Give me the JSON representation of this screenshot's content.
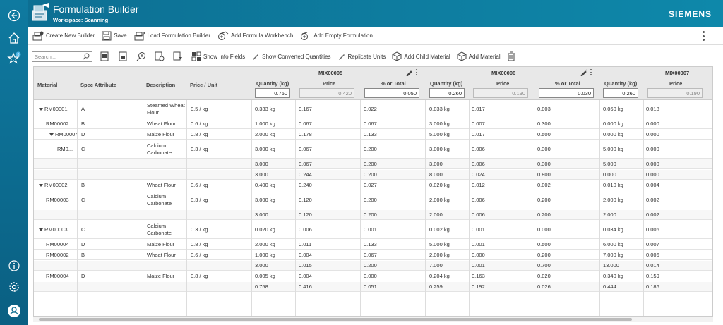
{
  "app": {
    "title": "Formulation Builder",
    "workspace": "Workspace: Scanning",
    "brand": "SIEMENS"
  },
  "nav": {
    "icons": [
      "back-icon",
      "home-icon",
      "favorites-icon",
      "info-icon",
      "settings-icon",
      "user-icon"
    ],
    "badge": "0"
  },
  "toolbar1": {
    "create": "Create New Builder",
    "save": "Save",
    "load": "Load Formulation Builder",
    "add_workbench": "Add Formula Workbench",
    "add_empty": "Add Empty Formulation"
  },
  "toolbar2": {
    "search_placeholder": "Search...",
    "show_info": "Show Info Fields",
    "show_converted": "Show Converted Quantities",
    "replicate": "Replicate Units",
    "add_child": "Add Child Material",
    "add_material": "Add Material"
  },
  "columns": {
    "material": "Material",
    "spec": "Spec Attribute",
    "description": "Description",
    "price": "Price / Unit",
    "quantity": "Quantity (kg)",
    "mix_price": "Price",
    "pct": "% or Total"
  },
  "mixes": [
    {
      "name": "MIX00005",
      "quantity": "0.760",
      "price": "0.420",
      "pct": "0.050"
    },
    {
      "name": "MIX00006",
      "quantity": "0.260",
      "price": "0.190",
      "pct": "0.030"
    },
    {
      "name": "MIX00007",
      "quantity": "0.260",
      "price": "0.190"
    }
  ],
  "rows": [
    {
      "material": "RM00001",
      "arrow": true,
      "indent": 0,
      "spec": "A",
      "desc": "Steamed Wheat Flour",
      "price": "0.5 / kg",
      "v": [
        "0.333 kg",
        "0.167",
        "0.022",
        "0.033 kg",
        "0.017",
        "0.003",
        "0.060 kg",
        "0.018"
      ],
      "h": 26
    },
    {
      "material": "RM00002",
      "indent": 2,
      "spec": "B",
      "desc": "Wheat Flour",
      "price": "0.6 / kg",
      "v": [
        "1.000 kg",
        "0.067",
        "0.067",
        "3.000 kg",
        "0.007",
        "0.300",
        "0.000 kg",
        "0.000"
      ],
      "h": 14
    },
    {
      "material": "RM00004",
      "arrow": true,
      "indent": 1,
      "spec": "D",
      "desc": "Maize Flour",
      "price": "0.8 / kg",
      "v": [
        "2.000 kg",
        "0.178",
        "0.133",
        "5.000 kg",
        "0.017",
        "0.500",
        "0.000 kg",
        "0.000"
      ],
      "h": 14
    },
    {
      "material": "RM0...",
      "indent": 3,
      "spec": "C",
      "desc": "Calcium Carbonate",
      "price": "0.3 / kg",
      "v": [
        "3.000 kg",
        "0.067",
        "0.200",
        "3.000 kg",
        "0.006",
        "0.300",
        "5.000 kg",
        "0.000"
      ],
      "h": 26
    },
    {
      "material": "",
      "indent": 0,
      "spec": "",
      "desc": "",
      "price": "",
      "sub": true,
      "v": [
        "3.000",
        "0.067",
        "0.200",
        "3.000",
        "0.006",
        "0.300",
        "5.000",
        "0.000"
      ],
      "h": 14
    },
    {
      "material": "",
      "indent": 0,
      "spec": "",
      "desc": "",
      "price": "",
      "sub": true,
      "v": [
        "3.000",
        "0.244",
        "0.200",
        "8.000",
        "0.024",
        "0.800",
        "0.000",
        "0.000"
      ],
      "h": 14
    },
    {
      "material": "RM00002",
      "arrow": true,
      "indent": 0,
      "spec": "B",
      "desc": "Wheat Flour",
      "price": "0.6 / kg",
      "v": [
        "0.400 kg",
        "0.240",
        "0.027",
        "0.020 kg",
        "0.012",
        "0.002",
        "0.010 kg",
        "0.004"
      ],
      "h": 14
    },
    {
      "material": "RM00003",
      "indent": 2,
      "spec": "C",
      "desc": "Calcium Carbonate",
      "price": "0.3 / kg",
      "v": [
        "3.000 kg",
        "0.120",
        "0.200",
        "2.000 kg",
        "0.006",
        "0.200",
        "2.000 kg",
        "0.002"
      ],
      "h": 26
    },
    {
      "material": "",
      "indent": 0,
      "spec": "",
      "desc": "",
      "price": "",
      "sub": true,
      "v": [
        "3.000",
        "0.120",
        "0.200",
        "2.000",
        "0.006",
        "0.200",
        "2.000",
        "0.002"
      ],
      "h": 14
    },
    {
      "material": "RM00003",
      "arrow": true,
      "indent": 0,
      "spec": "C",
      "desc": "Calcium Carbonate",
      "price": "0.3 / kg",
      "v": [
        "0.020 kg",
        "0.006",
        "0.001",
        "0.002 kg",
        "0.001",
        "0.000",
        "0.034 kg",
        "0.006"
      ],
      "h": 26
    },
    {
      "material": "RM00004",
      "indent": 2,
      "spec": "D",
      "desc": "Maize Flour",
      "price": "0.8 / kg",
      "v": [
        "2.000 kg",
        "0.011",
        "0.133",
        "5.000 kg",
        "0.001",
        "0.500",
        "6.000 kg",
        "0.007"
      ],
      "h": 14
    },
    {
      "material": "RM00002",
      "indent": 2,
      "spec": "B",
      "desc": "Wheat Flour",
      "price": "0.6 / kg",
      "v": [
        "1.000 kg",
        "0.004",
        "0.067",
        "2.000 kg",
        "0.000",
        "0.200",
        "7.000 kg",
        "0.006"
      ],
      "h": 14
    },
    {
      "material": "",
      "indent": 0,
      "spec": "",
      "desc": "",
      "price": "",
      "sub": true,
      "v": [
        "3.000",
        "0.015",
        "0.200",
        "7.000",
        "0.001",
        "0.700",
        "13.000",
        "0.014"
      ],
      "h": 14
    },
    {
      "material": "RM00004",
      "indent": 2,
      "spec": "D",
      "desc": "Maize Flour",
      "price": "0.8 / kg",
      "v": [
        "0.005 kg",
        "0.004",
        "0.000",
        "0.204 kg",
        "0.163",
        "0.020",
        "0.340 kg",
        "0.159"
      ],
      "h": 14
    },
    {
      "material": "",
      "indent": 0,
      "spec": "",
      "desc": "",
      "price": "",
      "sub": true,
      "v": [
        "0.758",
        "0.416",
        "0.051",
        "0.259",
        "0.192",
        "0.026",
        "0.444",
        "0.186"
      ],
      "h": 14
    }
  ]
}
